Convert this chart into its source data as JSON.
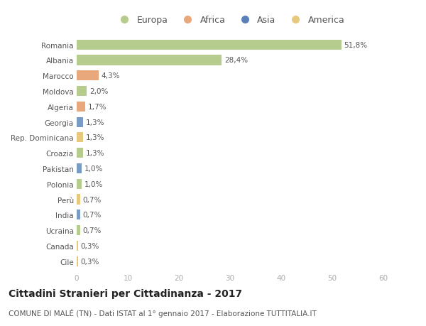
{
  "categories": [
    "Romania",
    "Albania",
    "Marocco",
    "Moldova",
    "Algeria",
    "Georgia",
    "Rep. Dominicana",
    "Croazia",
    "Pakistan",
    "Polonia",
    "Perù",
    "India",
    "Ucraina",
    "Canada",
    "Cile"
  ],
  "values": [
    51.8,
    28.4,
    4.3,
    2.0,
    1.7,
    1.3,
    1.3,
    1.3,
    1.0,
    1.0,
    0.7,
    0.7,
    0.7,
    0.3,
    0.3
  ],
  "labels": [
    "51,8%",
    "28,4%",
    "4,3%",
    "2,0%",
    "1,7%",
    "1,3%",
    "1,3%",
    "1,3%",
    "1,0%",
    "1,0%",
    "0,7%",
    "0,7%",
    "0,7%",
    "0,3%",
    "0,3%"
  ],
  "bar_colors": [
    "#b5cc8e",
    "#b5cc8e",
    "#e8a87c",
    "#b5cc8e",
    "#e8a87c",
    "#7a9bc4",
    "#e8c87c",
    "#b5cc8e",
    "#7a9bc4",
    "#b5cc8e",
    "#e8c87c",
    "#7a9bc4",
    "#b5cc8e",
    "#e8c87c",
    "#e8c87c"
  ],
  "legend_labels": [
    "Europa",
    "Africa",
    "Asia",
    "America"
  ],
  "legend_colors": [
    "#b5cc8e",
    "#e8a87c",
    "#5a80b8",
    "#e8c87c"
  ],
  "xlim": [
    0,
    60
  ],
  "xticks": [
    0,
    10,
    20,
    30,
    40,
    50,
    60
  ],
  "title": "Cittadini Stranieri per Cittadinanza - 2017",
  "subtitle": "COMUNE DI MALÉ (TN) - Dati ISTAT al 1° gennaio 2017 - Elaborazione TUTTITALIA.IT",
  "bg_color": "#ffffff",
  "bar_height": 0.65,
  "title_fontsize": 10,
  "subtitle_fontsize": 7.5,
  "label_fontsize": 7.5,
  "tick_fontsize": 7.5,
  "legend_fontsize": 9
}
